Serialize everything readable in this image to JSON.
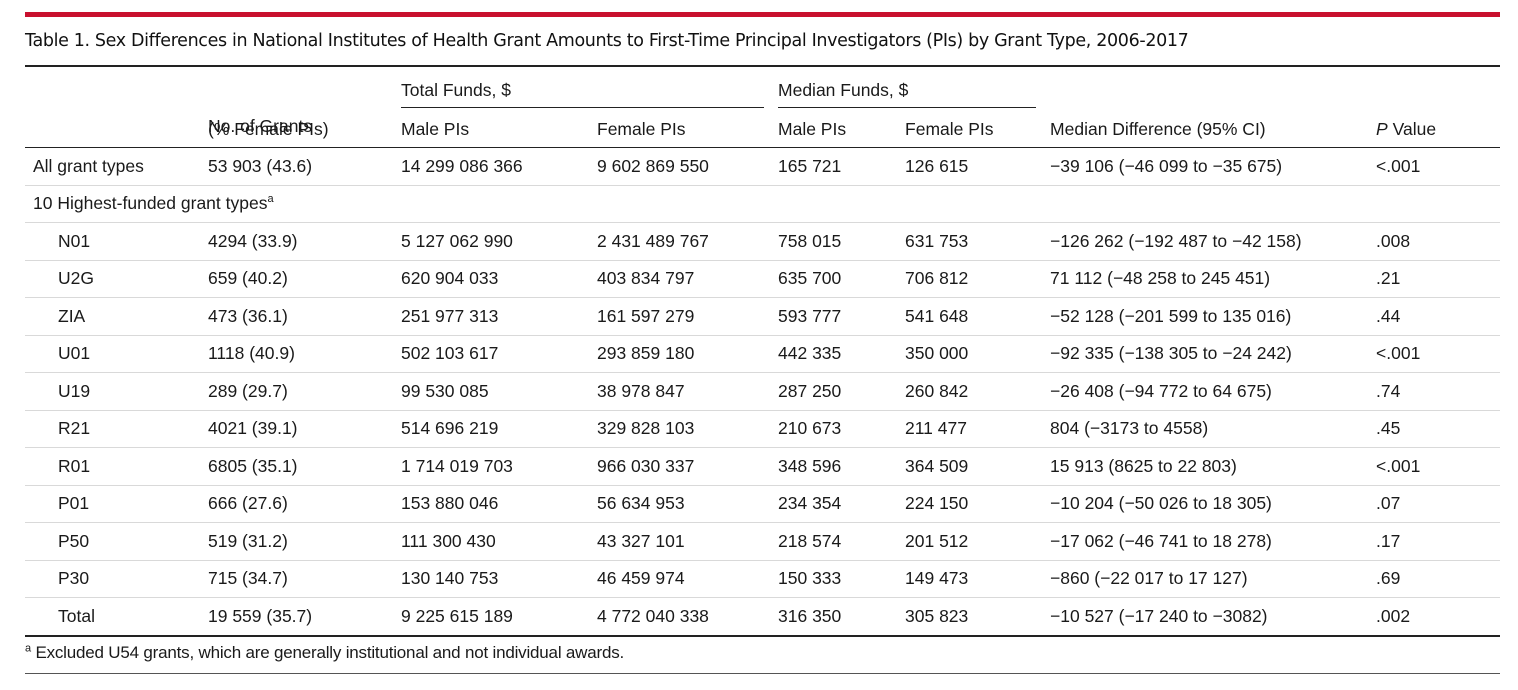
{
  "table": {
    "title": "Table 1. Sex Differences in National Institutes of Health Grant Amounts to First-Time Principal Investigators (PIs) by Grant Type, 2006-2017",
    "headers": {
      "grants_line1": "No. of Grants",
      "grants_line2": "(% Female PIs)",
      "total_funds": "Total Funds, $",
      "median_funds": "Median Funds, $",
      "male": "Male PIs",
      "female": "Female PIs",
      "median_diff": "Median Difference (95% CI)",
      "p_italic": "P",
      "p_rest": "Value"
    },
    "all_row": {
      "label": "All grant types",
      "grants": "53 903 (43.6)",
      "total_male": "14 299 086 366",
      "total_female": "9 602 869 550",
      "median_male": "165 721",
      "median_female": "126 615",
      "diff": "−39 106 (−46 099 to −35 675)",
      "p": "<.001"
    },
    "subheading": "10 Highest-funded grant types",
    "subheading_sup": "a",
    "rows": [
      {
        "type": "N01",
        "grants": "4294 (33.9)",
        "total_male": "5 127 062 990",
        "total_female": "2 431 489 767",
        "median_male": "758 015",
        "median_female": "631 753",
        "diff": "−126 262 (−192 487 to −42 158)",
        "p": ".008"
      },
      {
        "type": "U2G",
        "grants": "659 (40.2)",
        "total_male": "620 904 033",
        "total_female": "403 834 797",
        "median_male": "635 700",
        "median_female": "706 812",
        "diff": "71 112 (−48 258 to 245 451)",
        "p": ".21"
      },
      {
        "type": "ZIA",
        "grants": "473 (36.1)",
        "total_male": "251 977 313",
        "total_female": "161 597 279",
        "median_male": "593 777",
        "median_female": "541 648",
        "diff": "−52 128 (−201 599 to 135 016)",
        "p": ".44"
      },
      {
        "type": "U01",
        "grants": "1118 (40.9)",
        "total_male": "502 103 617",
        "total_female": "293 859 180",
        "median_male": "442 335",
        "median_female": "350 000",
        "diff": "−92 335 (−138 305 to −24 242)",
        "p": "<.001"
      },
      {
        "type": "U19",
        "grants": "289 (29.7)",
        "total_male": "99 530 085",
        "total_female": "38 978 847",
        "median_male": "287 250",
        "median_female": "260 842",
        "diff": "−26 408 (−94 772 to 64 675)",
        "p": ".74"
      },
      {
        "type": "R21",
        "grants": "4021 (39.1)",
        "total_male": "514 696 219",
        "total_female": "329 828 103",
        "median_male": "210 673",
        "median_female": "211 477",
        "diff": "804 (−3173 to 4558)",
        "p": ".45"
      },
      {
        "type": "R01",
        "grants": "6805 (35.1)",
        "total_male": "1 714 019 703",
        "total_female": "966 030 337",
        "median_male": "348 596",
        "median_female": "364 509",
        "diff": "15 913 (8625 to 22 803)",
        "p": "<.001"
      },
      {
        "type": "P01",
        "grants": "666 (27.6)",
        "total_male": "153 880 046",
        "total_female": "56 634 953",
        "median_male": "234 354",
        "median_female": "224 150",
        "diff": "−10 204 (−50 026 to 18 305)",
        "p": ".07"
      },
      {
        "type": "P50",
        "grants": "519 (31.2)",
        "total_male": "111 300 430",
        "total_female": "43 327 101",
        "median_male": "218 574",
        "median_female": "201 512",
        "diff": "−17 062 (−46 741 to 18 278)",
        "p": ".17"
      },
      {
        "type": "P30",
        "grants": "715 (34.7)",
        "total_male": "130 140 753",
        "total_female": "46 459 974",
        "median_male": "150 333",
        "median_female": "149 473",
        "diff": "−860 (−22 017 to 17 127)",
        "p": ".69"
      },
      {
        "type": "Total",
        "grants": "19 559 (35.7)",
        "total_male": "9 225 615 189",
        "total_female": "4 772 040 338",
        "median_male": "316 350",
        "median_female": "305 823",
        "diff": "−10 527 (−17 240 to −3082)",
        "p": ".002"
      }
    ],
    "footnote_sup": "a",
    "footnote": " Excluded U54 grants, which are generally institutional and not individual awards.",
    "accent_color": "#c8102e"
  }
}
